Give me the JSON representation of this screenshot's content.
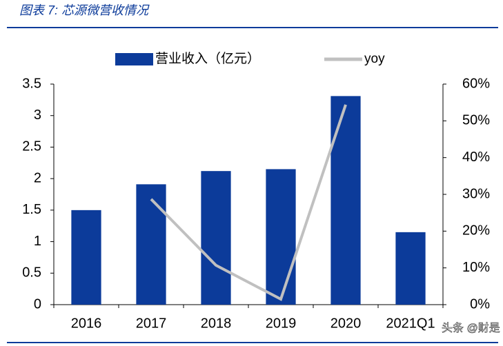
{
  "title": "图表 7: 芯源微营收情况",
  "watermark": "头条 @财是",
  "chart_data": {
    "type": "bar-line",
    "categories": [
      "2016",
      "2017",
      "2018",
      "2019",
      "2020",
      "2021Q1"
    ],
    "series": [
      {
        "name": "营业收入（亿元）",
        "type": "bar",
        "color": "#0c3b9a",
        "values": [
          1.5,
          1.91,
          2.12,
          2.15,
          3.31,
          1.15
        ]
      },
      {
        "name": "yoy",
        "type": "line",
        "color": "#c0c0c0",
        "axis": "y2",
        "values": [
          null,
          28.7,
          10.7,
          1.5,
          54.4,
          null
        ]
      }
    ],
    "ylim": [
      0,
      3.5
    ],
    "yticks": [
      0,
      0.5,
      1,
      1.5,
      2,
      2.5,
      3,
      3.5
    ],
    "y2lim": [
      0,
      60
    ],
    "y2ticks": [
      {
        "value": 0,
        "label": "0%"
      },
      {
        "value": 10,
        "label": "10%"
      },
      {
        "value": 20,
        "label": "20%"
      },
      {
        "value": 30,
        "label": "30%"
      },
      {
        "value": 40,
        "label": "40%"
      },
      {
        "value": 50,
        "label": "50%"
      },
      {
        "value": 60,
        "label": "60%"
      }
    ],
    "grid": false
  }
}
